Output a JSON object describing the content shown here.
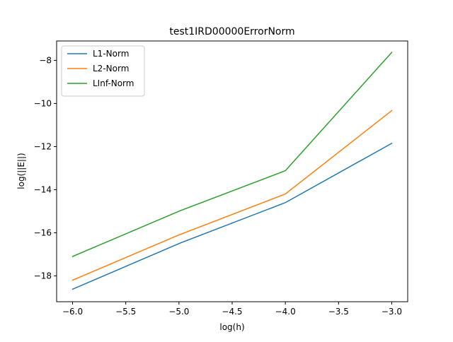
{
  "chart_data": {
    "type": "line",
    "title": "test1IRD00000ErrorNorm",
    "xlabel": "log(h)",
    "ylabel": "log(||E||)",
    "x": [
      -6.0,
      -5.0,
      -4.0,
      -3.0
    ],
    "xlim": [
      -6.15,
      -2.85
    ],
    "ylim": [
      -19.2,
      -7.1
    ],
    "xticks": [
      -6.0,
      -5.5,
      -5.0,
      -4.5,
      -4.0,
      -3.5,
      -3.0
    ],
    "xtick_labels": [
      "−6.0",
      "−5.5",
      "−5.0",
      "−4.5",
      "−4.0",
      "−3.5",
      "−3.0"
    ],
    "yticks": [
      -18,
      -16,
      -14,
      -12,
      -10,
      -8
    ],
    "ytick_labels": [
      "−18",
      "−16",
      "−14",
      "−12",
      "−10",
      "−8"
    ],
    "grid": false,
    "legend": "top-left",
    "series": [
      {
        "name": "L1-Norm",
        "color": "#1f77b4",
        "values": [
          -18.62,
          -16.5,
          -14.6,
          -11.85
        ]
      },
      {
        "name": "L2-Norm",
        "color": "#ff7f0e",
        "values": [
          -18.2,
          -16.1,
          -14.2,
          -10.33
        ]
      },
      {
        "name": "LInf-Norm",
        "color": "#2ca02c",
        "values": [
          -17.1,
          -15.0,
          -13.12,
          -7.63
        ]
      }
    ]
  }
}
